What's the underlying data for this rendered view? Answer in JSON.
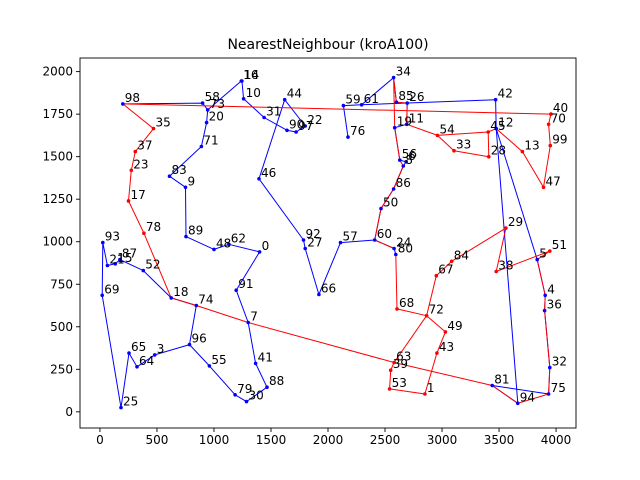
{
  "chart_data": {
    "type": "line",
    "title": "NearestNeighbour (kroA100)",
    "xlabel": "",
    "ylabel": "",
    "xlim": [
      -175,
      4175
    ],
    "ylim": [
      -95,
      2080
    ],
    "xticks": [
      0,
      500,
      1000,
      1500,
      2000,
      2500,
      3000,
      3500,
      4000
    ],
    "yticks": [
      0,
      250,
      500,
      750,
      1000,
      1250,
      1500,
      1750,
      2000
    ],
    "grid": false,
    "legend": "none",
    "colors": {
      "blue": "#0000ff",
      "red": "#ff0000"
    },
    "points": [
      {
        "id": "0",
        "x": 1400,
        "y": 940
      },
      {
        "id": "1",
        "x": 2850,
        "y": 105
      },
      {
        "id": "3",
        "x": 480,
        "y": 335
      },
      {
        "id": "4",
        "x": 3905,
        "y": 685
      },
      {
        "id": "6",
        "x": 2685,
        "y": 1470
      },
      {
        "id": "7",
        "x": 1300,
        "y": 525
      },
      {
        "id": "8",
        "x": 2660,
        "y": 1445
      },
      {
        "id": "9",
        "x": 750,
        "y": 1320
      },
      {
        "id": "10",
        "x": 1260,
        "y": 1840
      },
      {
        "id": "11",
        "x": 2690,
        "y": 1690
      },
      {
        "id": "12",
        "x": 3475,
        "y": 1665
      },
      {
        "id": "13",
        "x": 3705,
        "y": 1530
      },
      {
        "id": "14",
        "x": 1245,
        "y": 1945
      },
      {
        "id": "15",
        "x": 135,
        "y": 870
      },
      {
        "id": "16",
        "x": 1240,
        "y": 1945
      },
      {
        "id": "17",
        "x": 250,
        "y": 1240
      },
      {
        "id": "18",
        "x": 625,
        "y": 670
      },
      {
        "id": "19",
        "x": 2585,
        "y": 1670
      },
      {
        "id": "20",
        "x": 935,
        "y": 1700
      },
      {
        "id": "21",
        "x": 65,
        "y": 860
      },
      {
        "id": "22",
        "x": 1800,
        "y": 1680
      },
      {
        "id": "23",
        "x": 275,
        "y": 1420
      },
      {
        "id": "24",
        "x": 2580,
        "y": 960
      },
      {
        "id": "25",
        "x": 185,
        "y": 25
      },
      {
        "id": "26",
        "x": 2695,
        "y": 1815
      },
      {
        "id": "27",
        "x": 1800,
        "y": 960
      },
      {
        "id": "28",
        "x": 3410,
        "y": 1500
      },
      {
        "id": "29",
        "x": 3560,
        "y": 1080
      },
      {
        "id": "30",
        "x": 1285,
        "y": 60
      },
      {
        "id": "31",
        "x": 1440,
        "y": 1730
      },
      {
        "id": "32",
        "x": 3945,
        "y": 260
      },
      {
        "id": "33",
        "x": 3105,
        "y": 1535
      },
      {
        "id": "34",
        "x": 2575,
        "y": 1965
      },
      {
        "id": "35",
        "x": 470,
        "y": 1665
      },
      {
        "id": "36",
        "x": 3900,
        "y": 595
      },
      {
        "id": "37",
        "x": 310,
        "y": 1530
      },
      {
        "id": "38",
        "x": 3475,
        "y": 825
      },
      {
        "id": "39",
        "x": 2550,
        "y": 245
      },
      {
        "id": "40",
        "x": 3955,
        "y": 1750
      },
      {
        "id": "41",
        "x": 1365,
        "y": 285
      },
      {
        "id": "42",
        "x": 3470,
        "y": 1835
      },
      {
        "id": "43",
        "x": 2955,
        "y": 345
      },
      {
        "id": "44",
        "x": 1620,
        "y": 1835
      },
      {
        "id": "45",
        "x": 3405,
        "y": 1645
      },
      {
        "id": "46",
        "x": 1395,
        "y": 1370
      },
      {
        "id": "47",
        "x": 3890,
        "y": 1320
      },
      {
        "id": "48",
        "x": 1000,
        "y": 955
      },
      {
        "id": "49",
        "x": 3030,
        "y": 470
      },
      {
        "id": "50",
        "x": 2465,
        "y": 1195
      },
      {
        "id": "51",
        "x": 3945,
        "y": 945
      },
      {
        "id": "52",
        "x": 380,
        "y": 830
      },
      {
        "id": "53",
        "x": 2540,
        "y": 135
      },
      {
        "id": "54",
        "x": 2960,
        "y": 1625
      },
      {
        "id": "55",
        "x": 960,
        "y": 270
      },
      {
        "id": "56",
        "x": 2630,
        "y": 1480
      },
      {
        "id": "57",
        "x": 2110,
        "y": 995
      },
      {
        "id": "58",
        "x": 900,
        "y": 1815
      },
      {
        "id": "59",
        "x": 2135,
        "y": 1800
      },
      {
        "id": "60",
        "x": 2410,
        "y": 1010
      },
      {
        "id": "61",
        "x": 2295,
        "y": 1805
      },
      {
        "id": "62",
        "x": 1130,
        "y": 985
      },
      {
        "id": "63",
        "x": 2580,
        "y": 290
      },
      {
        "id": "64",
        "x": 325,
        "y": 265
      },
      {
        "id": "65",
        "x": 255,
        "y": 345
      },
      {
        "id": "66",
        "x": 1920,
        "y": 690
      },
      {
        "id": "67",
        "x": 2950,
        "y": 800
      },
      {
        "id": "68",
        "x": 2605,
        "y": 605
      },
      {
        "id": "69",
        "x": 20,
        "y": 685
      },
      {
        "id": "70",
        "x": 3935,
        "y": 1690
      },
      {
        "id": "71",
        "x": 890,
        "y": 1560
      },
      {
        "id": "72",
        "x": 2865,
        "y": 565
      },
      {
        "id": "73",
        "x": 945,
        "y": 1775
      },
      {
        "id": "74",
        "x": 845,
        "y": 625
      },
      {
        "id": "75",
        "x": 3935,
        "y": 105
      },
      {
        "id": "76",
        "x": 2175,
        "y": 1615
      },
      {
        "id": "78",
        "x": 385,
        "y": 1050
      },
      {
        "id": "79",
        "x": 1185,
        "y": 100
      },
      {
        "id": "80",
        "x": 2595,
        "y": 925
      },
      {
        "id": "81",
        "x": 3440,
        "y": 155
      },
      {
        "id": "83",
        "x": 610,
        "y": 1385
      },
      {
        "id": "84",
        "x": 3085,
        "y": 885
      },
      {
        "id": "85",
        "x": 2600,
        "y": 1820
      },
      {
        "id": "86",
        "x": 2575,
        "y": 1310
      },
      {
        "id": "87",
        "x": 175,
        "y": 895
      },
      {
        "id": "88",
        "x": 1465,
        "y": 145
      },
      {
        "id": "89",
        "x": 755,
        "y": 1030
      },
      {
        "id": "90",
        "x": 1640,
        "y": 1655
      },
      {
        "id": "91",
        "x": 1195,
        "y": 715
      },
      {
        "id": "92",
        "x": 1785,
        "y": 1010
      },
      {
        "id": "93",
        "x": 25,
        "y": 995
      },
      {
        "id": "94",
        "x": 3665,
        "y": 50
      },
      {
        "id": "96",
        "x": 785,
        "y": 395
      },
      {
        "id": "97",
        "x": 1720,
        "y": 1645
      },
      {
        "id": "98",
        "x": 200,
        "y": 1810
      },
      {
        "id": "99",
        "x": 3950,
        "y": 1565
      },
      {
        "id": "5",
        "x": 3835,
        "y": 895
      }
    ],
    "series": [
      {
        "color": "#0000ff",
        "path": [
          "98",
          "58",
          "73",
          "20",
          "71",
          "83",
          "9",
          "89",
          "48",
          "62",
          "0",
          "91",
          "7",
          "41",
          "88",
          "30",
          "79",
          "55",
          "96",
          "3",
          "64",
          "65",
          "25",
          "69",
          "93",
          "21",
          "15",
          "87",
          "52",
          "18",
          "74",
          "96"
        ]
      },
      {
        "color": "#0000ff",
        "path": [
          "73",
          "16",
          "14",
          "10",
          "31",
          "90",
          "97",
          "22",
          "44",
          "46",
          "92",
          "27",
          "66",
          "57",
          "60",
          "24",
          "80"
        ]
      },
      {
        "color": "#0000ff",
        "path": [
          "76",
          "59",
          "61",
          "34",
          "85",
          "26",
          "11",
          "19",
          "56",
          "6",
          "8",
          "86",
          "50",
          "60"
        ]
      },
      {
        "color": "#0000ff",
        "path": [
          "42",
          "12",
          "5",
          "4",
          "36",
          "32",
          "75",
          "81",
          "94",
          "12"
        ]
      },
      {
        "color": "#0000ff",
        "path": [
          "42",
          "61"
        ]
      },
      {
        "color": "#ff0000",
        "path": [
          "98",
          "35",
          "37",
          "23",
          "17",
          "78",
          "18",
          "74",
          "7",
          "63",
          "39",
          "53",
          "1",
          "43",
          "49",
          "72",
          "68",
          "80"
        ]
      },
      {
        "color": "#ff0000",
        "path": [
          "72",
          "63",
          "81",
          "94",
          "75",
          "32",
          "36",
          "4",
          "5",
          "51",
          "38",
          "29",
          "84",
          "67",
          "72"
        ]
      },
      {
        "color": "#ff0000",
        "path": [
          "98",
          "40",
          "70",
          "99",
          "47",
          "13",
          "12",
          "45",
          "28",
          "33",
          "54",
          "11",
          "26",
          "85",
          "34",
          "19",
          "56",
          "8",
          "86",
          "50",
          "60",
          "24"
        ]
      },
      {
        "color": "#ff0000",
        "path": [
          "54",
          "45"
        ]
      }
    ]
  }
}
